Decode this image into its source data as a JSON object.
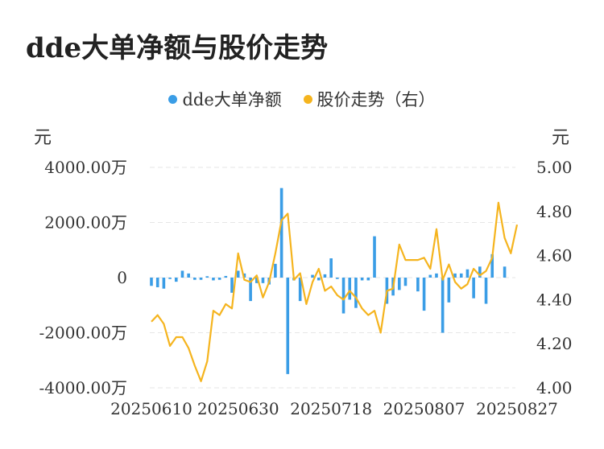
{
  "chart_data": {
    "type": "bar+line",
    "title": "dde大单净额与股价走势",
    "legend": {
      "placement": "top-center"
    },
    "left_axis": {
      "unit_label": "元",
      "ylim": [
        -4000,
        4000
      ],
      "ticks": [
        "4000.00万",
        "2000.00万",
        "0",
        "-2000.00万",
        "-4000.00万"
      ],
      "tick_values": [
        4000,
        2000,
        0,
        -2000,
        -4000
      ]
    },
    "right_axis": {
      "unit_label": "元",
      "ylim": [
        4.0,
        5.0
      ],
      "ticks": [
        "5.00",
        "4.80",
        "4.60",
        "4.40",
        "4.20",
        "4.00"
      ],
      "tick_values": [
        5.0,
        4.8,
        4.6,
        4.4,
        4.2,
        4.0
      ]
    },
    "x_tick_labels": [
      "20250610",
      "20250630",
      "20250718",
      "20250807",
      "20250827"
    ],
    "x_tick_indices": [
      0,
      14,
      29,
      44,
      59
    ],
    "grid": true,
    "series": [
      {
        "name": "dde大单净额",
        "type": "bar",
        "axis": "left",
        "color": "#3a9de6",
        "values": [
          -300,
          -350,
          -400,
          -50,
          -150,
          250,
          150,
          -80,
          -80,
          50,
          -100,
          -80,
          60,
          -550,
          250,
          150,
          -850,
          -200,
          -200,
          -250,
          500,
          3250,
          -3500,
          -100,
          -850,
          0,
          100,
          -100,
          120,
          700,
          -50,
          -1300,
          -800,
          -1100,
          -100,
          -100,
          1500,
          0,
          -950,
          -650,
          -450,
          -300,
          0,
          -500,
          -1200,
          100,
          150,
          -2000,
          -900,
          150,
          150,
          300,
          -750,
          400,
          -950,
          850,
          0,
          400
        ],
        "x_start_index": 0
      },
      {
        "name": "股价走势（右）",
        "type": "line",
        "axis": "right",
        "color": "#f5b41e",
        "values": [
          4.3,
          4.33,
          4.29,
          4.19,
          4.23,
          4.23,
          4.18,
          4.1,
          4.03,
          4.12,
          4.35,
          4.33,
          4.38,
          4.36,
          4.61,
          4.49,
          4.48,
          4.51,
          4.41,
          4.48,
          4.61,
          4.76,
          4.79,
          4.49,
          4.52,
          4.38,
          4.48,
          4.54,
          4.44,
          4.46,
          4.42,
          4.4,
          4.44,
          4.41,
          4.36,
          4.33,
          4.35,
          4.25,
          4.44,
          4.45,
          4.65,
          4.58,
          4.58,
          4.58,
          4.59,
          4.54,
          4.72,
          4.49,
          4.56,
          4.48,
          4.45,
          4.47,
          4.54,
          4.51,
          4.53,
          4.59,
          4.84,
          4.68,
          4.61,
          4.74
        ]
      }
    ]
  }
}
